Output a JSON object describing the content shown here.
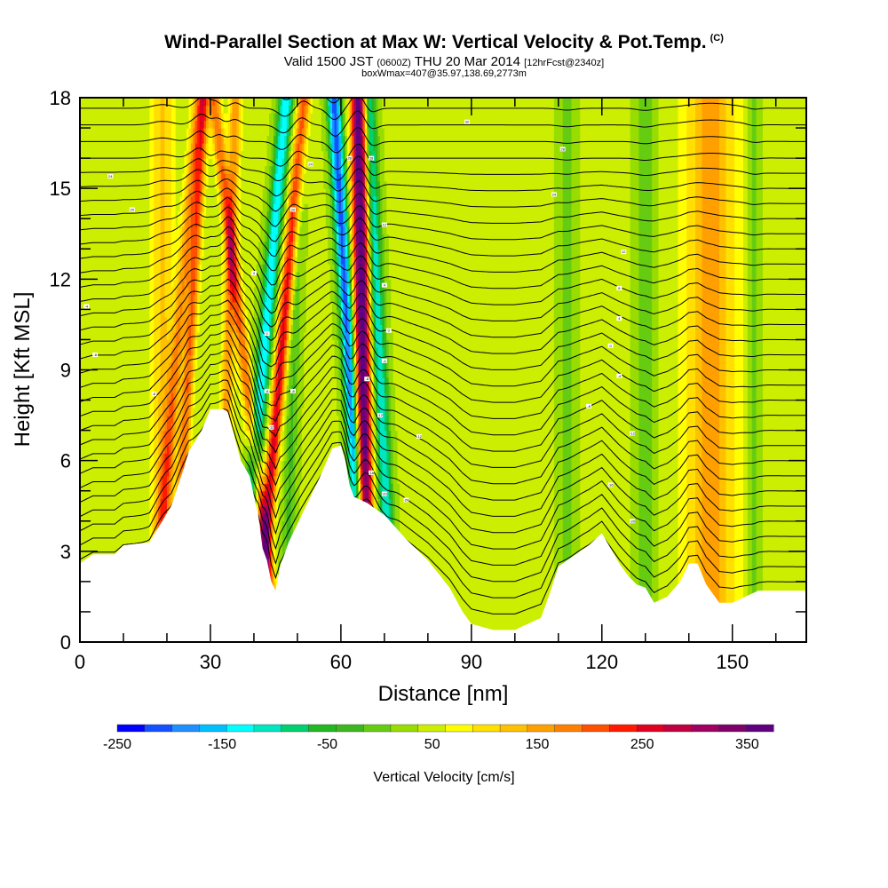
{
  "header": {
    "title": "Wind-Parallel Section at Max W: Vertical Velocity & Pot.Temp.",
    "title_tag": "(C)",
    "valid_prefix": "Valid 1500 JST",
    "valid_zulu": "(0600Z)",
    "valid_date": "THU 20 Mar 2014",
    "forecast": "[12hrFcst@2340z]",
    "box_info": "boxWmax=407@35.97,138.69,2773m"
  },
  "chart_data": {
    "type": "heatmap",
    "xlabel": "Distance [nm]",
    "ylabel": "Height [Kft MSL]",
    "xlim": [
      0,
      167
    ],
    "ylim": [
      0,
      18
    ],
    "x_ticks": [
      "0",
      "30",
      "60",
      "90",
      "120",
      "150"
    ],
    "y_ticks": [
      "0",
      "3",
      "6",
      "9",
      "12",
      "15",
      "18"
    ],
    "colorbar": {
      "title": "Vertical Velocity [cm/s]",
      "labels": [
        "-250",
        "-150",
        "-50",
        "50",
        "150",
        "250",
        "350"
      ],
      "levels_min": -250,
      "levels_max": 375,
      "colors": [
        "#0000ff",
        "#1450ff",
        "#1e90ff",
        "#00bfff",
        "#00ffff",
        "#00e6c0",
        "#00d070",
        "#22b822",
        "#3cb81e",
        "#66cc11",
        "#99dd00",
        "#ccee00",
        "#ffff00",
        "#ffe000",
        "#ffc000",
        "#ffa000",
        "#ff8000",
        "#ff5000",
        "#ff1a00",
        "#e00020",
        "#c00040",
        "#a00060",
        "#80006a",
        "#600080"
      ]
    },
    "background_vv_cm_s": 40,
    "updraft_downdraft_bands": [
      {
        "x": 22,
        "vv": 120,
        "slope": 0.6,
        "width": 1.6
      },
      {
        "x": 25,
        "vv": 150,
        "slope": 0.4,
        "width": 1.3
      },
      {
        "x": 34,
        "vv": 120,
        "slope": 0.2,
        "width": 1.4
      },
      {
        "x": 38,
        "vv": 150,
        "slope": -0.8,
        "width": 1.4
      },
      {
        "x": 42,
        "vv": -180,
        "slope": 0.6,
        "width": 1.7
      },
      {
        "x": 46,
        "vv": 220,
        "slope": 0.6,
        "width": 1.5
      },
      {
        "x": 49,
        "vv": -60,
        "slope": 0.2,
        "width": 1.5
      },
      {
        "x": 62,
        "vv": -250,
        "slope": -0.4,
        "width": 1.6
      },
      {
        "x": 65,
        "vv": 350,
        "slope": -0.1,
        "width": 1.8
      },
      {
        "x": 69,
        "vv": -160,
        "slope": -0.3,
        "width": 1.6
      },
      {
        "x": 19,
        "vv": 80,
        "slope": 0.0,
        "width": 2.5
      },
      {
        "x": 145,
        "vv": 110,
        "slope": 0.0,
        "width": 6.0
      },
      {
        "x": 130,
        "vv": -50,
        "slope": 0.0,
        "width": 2.0
      },
      {
        "x": 155,
        "vv": -40,
        "slope": 0.0,
        "width": 1.5
      },
      {
        "x": 112,
        "vv": -40,
        "slope": 0.0,
        "width": 2.0
      }
    ],
    "terrain_height_kft": {
      "x": [
        0,
        3,
        8,
        10,
        16,
        21,
        24,
        25,
        28,
        30,
        33,
        34,
        37,
        39,
        41,
        42,
        43,
        44,
        45,
        46,
        48,
        50,
        55,
        58,
        60,
        61,
        62,
        63,
        66,
        70,
        75,
        80,
        85,
        88,
        90,
        95,
        100,
        103,
        106,
        108,
        110,
        113,
        117,
        120,
        122,
        124,
        126,
        128,
        130,
        132,
        135,
        138,
        140,
        142,
        144,
        147,
        150,
        153,
        156,
        160,
        167
      ],
      "y": [
        2.6,
        2.9,
        2.9,
        3.2,
        3.3,
        4.5,
        5.8,
        6.3,
        7.0,
        7.7,
        7.7,
        7.6,
        6.0,
        5.5,
        4.2,
        3.1,
        2.7,
        2.0,
        1.7,
        2.5,
        3.3,
        3.9,
        5.4,
        6.4,
        6.5,
        6.0,
        5.2,
        4.8,
        4.6,
        4.2,
        3.4,
        2.7,
        1.8,
        1.0,
        0.6,
        0.4,
        0.4,
        0.6,
        0.8,
        1.6,
        2.5,
        2.8,
        3.2,
        3.6,
        3.1,
        2.6,
        2.2,
        1.9,
        1.8,
        1.3,
        1.5,
        2.0,
        2.6,
        2.6,
        1.9,
        1.3,
        1.3,
        1.5,
        1.7,
        1.7,
        1.7
      ]
    },
    "isentrope_labels": [
      {
        "x": 1.5,
        "y": 11.1,
        "label": "-4"
      },
      {
        "x": 3.5,
        "y": 9.5,
        "label": "-8"
      },
      {
        "x": 7,
        "y": 15.4,
        "label": "24"
      },
      {
        "x": 12,
        "y": 14.3,
        "label": "20"
      },
      {
        "x": 17,
        "y": 8.2,
        "label": "-8"
      },
      {
        "x": 40,
        "y": 12.2,
        "label": "4"
      },
      {
        "x": 43,
        "y": 10.2,
        "label": "0"
      },
      {
        "x": 43,
        "y": 8.3,
        "label": "-8"
      },
      {
        "x": 44,
        "y": 7.1,
        "label": "-12"
      },
      {
        "x": 49,
        "y": 8.3,
        "label": "-8"
      },
      {
        "x": 49,
        "y": 14.3,
        "label": "20"
      },
      {
        "x": 53,
        "y": 15.8,
        "label": "24"
      },
      {
        "x": 62,
        "y": 16.0,
        "label": "28"
      },
      {
        "x": 67,
        "y": 16.0,
        "label": "28"
      },
      {
        "x": 66,
        "y": 8.7,
        "label": "-8"
      },
      {
        "x": 67,
        "y": 5.6,
        "label": "-16"
      },
      {
        "x": 69,
        "y": 7.5,
        "label": "-12"
      },
      {
        "x": 70,
        "y": 9.3,
        "label": "-4"
      },
      {
        "x": 70,
        "y": 11.8,
        "label": "4"
      },
      {
        "x": 70,
        "y": 13.8,
        "label": "12"
      },
      {
        "x": 71,
        "y": 10.3,
        "label": "0"
      },
      {
        "x": 70,
        "y": 4.9,
        "label": "-20"
      },
      {
        "x": 75,
        "y": 4.7,
        "label": "-20"
      },
      {
        "x": 78,
        "y": 6.8,
        "label": "-12"
      },
      {
        "x": 89,
        "y": 17.2,
        "label": "32"
      },
      {
        "x": 109,
        "y": 14.8,
        "label": "24"
      },
      {
        "x": 111,
        "y": 16.3,
        "label": "28"
      },
      {
        "x": 117,
        "y": 7.8,
        "label": "-8"
      },
      {
        "x": 122,
        "y": 9.8,
        "label": "0"
      },
      {
        "x": 122,
        "y": 5.2,
        "label": "-16"
      },
      {
        "x": 124,
        "y": 8.8,
        "label": "-4"
      },
      {
        "x": 124,
        "y": 10.7,
        "label": "4"
      },
      {
        "x": 124,
        "y": 11.7,
        "label": "8"
      },
      {
        "x": 125,
        "y": 12.9,
        "label": "12"
      },
      {
        "x": 127,
        "y": 6.9,
        "label": "-12"
      },
      {
        "x": 127,
        "y": 4.0,
        "label": "-20"
      }
    ]
  }
}
